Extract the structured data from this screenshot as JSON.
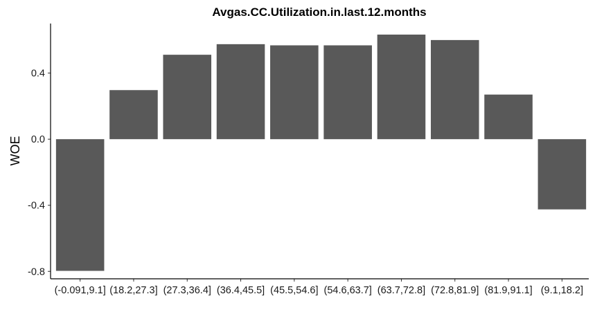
{
  "chart_data": {
    "type": "bar",
    "title": "Avgas.CC.Utilization.in.last.12.months",
    "xlabel": "",
    "ylabel": "WOE",
    "categories": [
      "(-0.091,9.1]",
      "(18.2,27.3]",
      "(27.3,36.4]",
      "(36.4,45.5]",
      "(45.5,54.6]",
      "(54.6,63.7]",
      "(63.7,72.8]",
      "(72.8,81.9]",
      "(81.9,91.1]",
      "(9.1,18.2]"
    ],
    "values": [
      -0.797,
      0.297,
      0.511,
      0.575,
      0.568,
      0.568,
      0.633,
      0.6,
      0.27,
      -0.425
    ],
    "ylim": [
      -0.845,
      0.7
    ],
    "yticks": [
      -0.8,
      -0.4,
      0.0,
      0.4
    ],
    "ytick_labels": [
      "-0.8",
      "-0.4",
      "0.0",
      "0.4"
    ],
    "bar_color": "#595959",
    "grid": false,
    "legend": "none"
  }
}
